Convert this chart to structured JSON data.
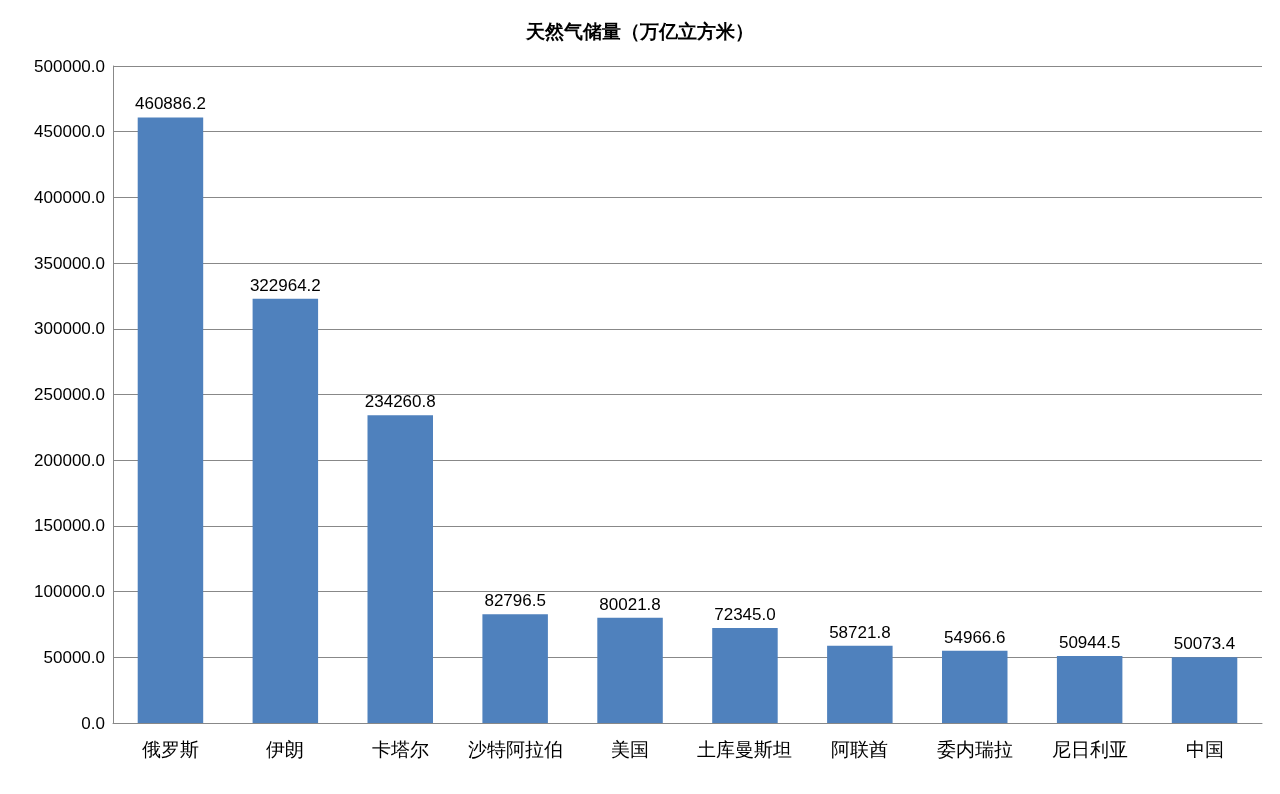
{
  "chart_data": {
    "type": "bar",
    "title": "天然气储量（万亿立方米）",
    "categories": [
      "俄罗斯",
      "伊朗",
      "卡塔尔",
      "沙特阿拉伯",
      "美国",
      "土库曼斯坦",
      "阿联酋",
      "委内瑞拉",
      "尼日利亚",
      "中国"
    ],
    "values": [
      460886.2,
      322964.2,
      234260.8,
      82796.5,
      80021.8,
      72345.0,
      58721.8,
      54966.6,
      50944.5,
      50073.4
    ],
    "value_labels": [
      "460886.2",
      "322964.2",
      "234260.8",
      "82796.5",
      "80021.8",
      "72345.0",
      "58721.8",
      "54966.6",
      "50944.5",
      "50073.4"
    ],
    "color": "#4f81bd",
    "ylim": [
      0,
      500000
    ],
    "yticks": [
      {
        "value": 0,
        "label": "0.0"
      },
      {
        "value": 50000,
        "label": "50000.0"
      },
      {
        "value": 100000,
        "label": "100000.0"
      },
      {
        "value": 150000,
        "label": "150000.0"
      },
      {
        "value": 200000,
        "label": "200000.0"
      },
      {
        "value": 250000,
        "label": "250000.0"
      },
      {
        "value": 300000,
        "label": "300000.0"
      },
      {
        "value": 350000,
        "label": "350000.0"
      },
      {
        "value": 400000,
        "label": "400000.0"
      },
      {
        "value": 450000,
        "label": "450000.0"
      },
      {
        "value": 500000,
        "label": "500000.0"
      }
    ],
    "grid": "y"
  }
}
